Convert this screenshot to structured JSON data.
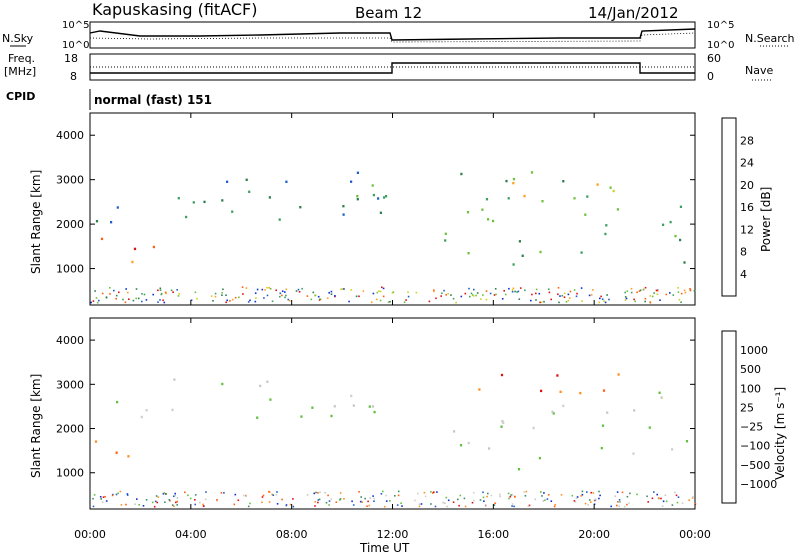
{
  "header": {
    "station": "Kapuskasing (fitACF)",
    "beam": "Beam 12",
    "date": "14/Jan/2012"
  },
  "aux": {
    "nsky_label": "N.Sky",
    "nsearch_label": "N.Search",
    "freq_label_1": "Freq.",
    "freq_label_2": "[MHz]",
    "nave_label": "Nave",
    "cpid_label": "CPID",
    "cpid_value": "normal (fast) 151",
    "noise_ticks": [
      "10^5",
      "10^0"
    ],
    "freq_ticks": [
      "18",
      "8"
    ],
    "nave_ticks": [
      "60",
      "0"
    ]
  },
  "colors": {
    "power": [
      "#1030d0",
      "#2060c8",
      "#2e8050",
      "#3ea060",
      "#70c040",
      "#d0d020",
      "#ffa020",
      "#ff6010",
      "#e01010"
    ],
    "velocity": [
      "#1030d0",
      "#2060c8",
      "#3a9060",
      "#60c040",
      "#c8c8c0",
      "#d0d0c8",
      "#ff9020",
      "#ff6010",
      "#e01010"
    ]
  },
  "chart_data": [
    {
      "type": "heatmap",
      "panel": "power",
      "ylabel": "Slant Range [km]",
      "yticks": [
        "1000",
        "2000",
        "3000",
        "4000"
      ],
      "ylim": [
        180,
        4500
      ],
      "xlim": [
        "00:00",
        "24:00"
      ],
      "colorbar_label": "Power [dB]",
      "colorbar_ticks": [
        "4",
        "8",
        "12",
        "16",
        "20",
        "24",
        "28"
      ],
      "regions": [
        {
          "t0": 0.0,
          "t1": 2.5,
          "r0": 900,
          "r1": 1800,
          "level": 6
        },
        {
          "t0": 0.5,
          "t1": 2.0,
          "r0": 1100,
          "r1": 1600,
          "level": 8
        },
        {
          "t0": 0.0,
          "t1": 1.0,
          "r0": 1800,
          "r1": 3200,
          "level": 1
        },
        {
          "t0": 1.0,
          "t1": 12.0,
          "r0": 2000,
          "r1": 3400,
          "level": 2
        },
        {
          "t0": 8.0,
          "t1": 12.0,
          "r0": 2200,
          "r1": 2900,
          "level": 4
        },
        {
          "t0": 14.0,
          "t1": 22.0,
          "r0": 1100,
          "r1": 3300,
          "level": 3
        },
        {
          "t0": 15.0,
          "t1": 22.0,
          "r0": 2600,
          "r1": 3200,
          "level": 5
        },
        {
          "t0": 22.0,
          "t1": 24.0,
          "r0": 1100,
          "r1": 3200,
          "level": 3
        }
      ]
    },
    {
      "type": "heatmap",
      "panel": "velocity",
      "ylabel": "Slant Range [km]",
      "yticks": [
        "1000",
        "2000",
        "3000",
        "4000"
      ],
      "ylim": [
        180,
        4500
      ],
      "xlim": [
        "00:00",
        "24:00"
      ],
      "xticks": [
        "00:00",
        "04:00",
        "08:00",
        "12:00",
        "16:00",
        "20:00",
        "00:00"
      ],
      "xlabel": "Time UT",
      "colorbar_label": "Velocity [m s⁻¹]",
      "colorbar_ticks": [
        "1000",
        "500",
        "100",
        "25",
        "−25",
        "−100",
        "−500",
        "−1000"
      ],
      "regions": [
        {
          "t0": 0.0,
          "t1": 2.5,
          "r0": 900,
          "r1": 1800,
          "level": 6
        },
        {
          "t0": 0.0,
          "t1": 1.0,
          "r0": 1600,
          "r1": 1900,
          "level": 3
        },
        {
          "t0": 1.0,
          "t1": 12.0,
          "r0": 2000,
          "r1": 3200,
          "level": 4
        },
        {
          "t0": 14.0,
          "t1": 22.0,
          "r0": 1000,
          "r1": 2600,
          "level": 4
        },
        {
          "t0": 14.0,
          "t1": 22.0,
          "r0": 2600,
          "r1": 3300,
          "level": 7
        },
        {
          "t0": 22.0,
          "t1": 24.0,
          "r0": 1100,
          "r1": 2900,
          "level": 4
        }
      ]
    }
  ]
}
